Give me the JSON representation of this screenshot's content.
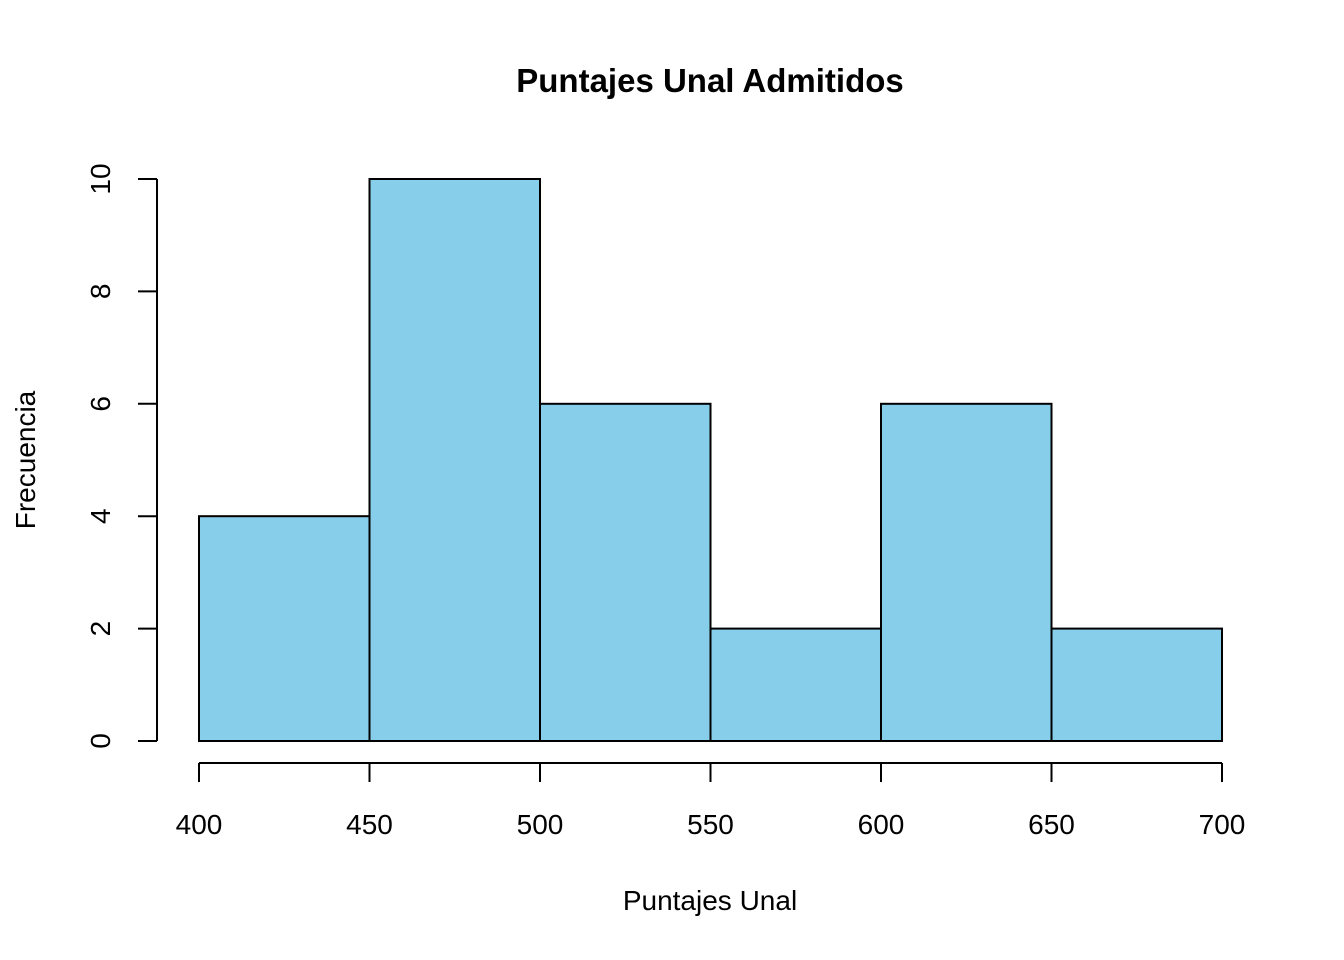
{
  "chart_data": {
    "type": "bar",
    "subtype": "histogram",
    "title": "Puntajes Unal Admitidos",
    "xlabel": "Puntajes Unal",
    "ylabel": "Frecuencia",
    "bins": [
      {
        "start": 400,
        "end": 450,
        "count": 4
      },
      {
        "start": 450,
        "end": 500,
        "count": 10
      },
      {
        "start": 500,
        "end": 550,
        "count": 6
      },
      {
        "start": 550,
        "end": 600,
        "count": 2
      },
      {
        "start": 600,
        "end": 650,
        "count": 6
      },
      {
        "start": 650,
        "end": 700,
        "count": 2
      }
    ],
    "x_ticks": [
      "400",
      "450",
      "500",
      "550",
      "600",
      "650",
      "700"
    ],
    "y_ticks": [
      "0",
      "2",
      "4",
      "6",
      "8",
      "10"
    ],
    "xlim": [
      400,
      700
    ],
    "ylim": [
      0,
      10
    ],
    "bar_color": "#87ceeb",
    "edge_color": "#000000",
    "grid": false,
    "legend": "none"
  }
}
